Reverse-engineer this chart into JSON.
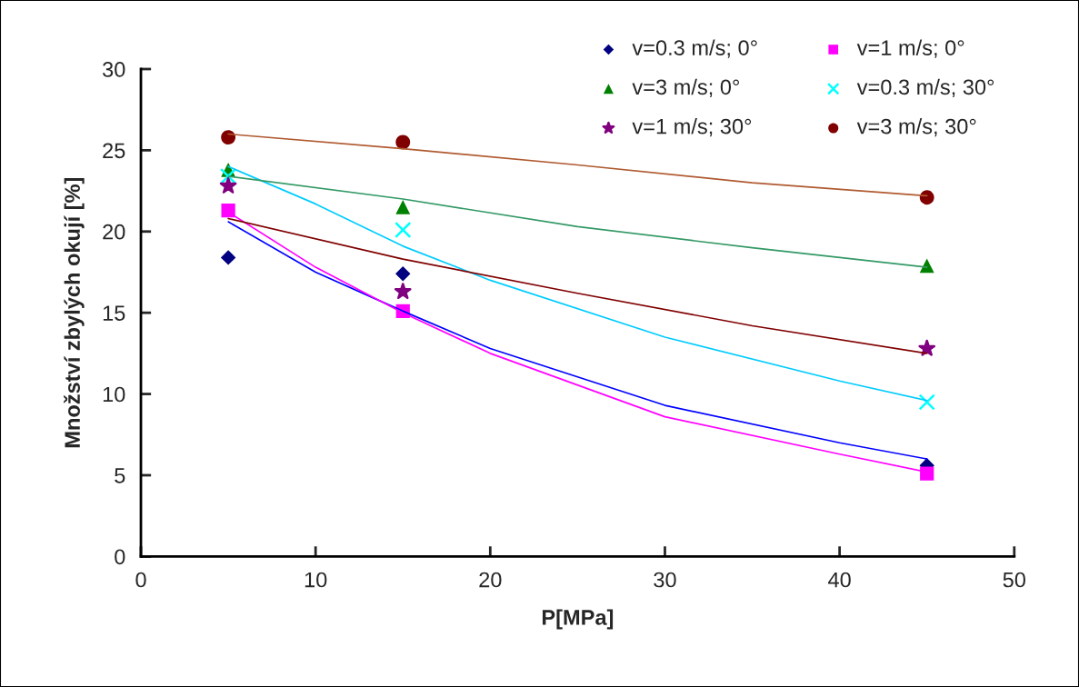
{
  "chart_data": {
    "type": "scatter",
    "xlabel": "P[MPa]",
    "ylabel": "Množství zbylých okují [%]",
    "x": [
      5,
      15,
      45
    ],
    "xlim": [
      0,
      50
    ],
    "xticks": [
      0,
      10,
      20,
      30,
      40,
      50
    ],
    "ylim": [
      0,
      30
    ],
    "yticks": [
      0,
      5,
      10,
      15,
      20,
      25,
      30
    ],
    "grid": false,
    "legend": "top right",
    "series": [
      {
        "name": "v=0.3 m/s; 0°",
        "color": "#000080",
        "marker": "diamond",
        "values": [
          18.4,
          17.4,
          5.6
        ]
      },
      {
        "name": "v=1 m/s; 0°",
        "color": "#ff00ff",
        "marker": "square",
        "values": [
          21.3,
          15.1,
          5.1
        ]
      },
      {
        "name": "v=3 m/s; 0°",
        "color": "#008000",
        "marker": "triangle",
        "values": [
          23.8,
          21.5,
          17.9
        ]
      },
      {
        "name": "v=0.3 m/s; 30°",
        "color": "#00ffff",
        "marker": "cross",
        "values": [
          23.4,
          20.1,
          9.5
        ]
      },
      {
        "name": "v=1 m/s; 30°",
        "color": "#800080",
        "marker": "star",
        "values": [
          22.8,
          16.3,
          12.8
        ]
      },
      {
        "name": "v=3 m/s; 30°",
        "color": "#800000",
        "marker": "circle",
        "values": [
          25.8,
          25.5,
          22.1
        ]
      },
      {
        "type": "line",
        "color": "#0000ff",
        "marker": "none",
        "x": [
          5,
          10,
          15,
          20,
          30,
          40,
          45
        ],
        "values": [
          20.6,
          17.5,
          15.1,
          12.8,
          9.3,
          7.0,
          6.0
        ]
      },
      {
        "type": "line",
        "color": "#ff00ff",
        "marker": "none",
        "x": [
          5,
          10,
          15,
          20,
          30,
          40,
          45
        ],
        "values": [
          21.2,
          17.8,
          15.0,
          12.5,
          8.6,
          6.3,
          5.2
        ]
      },
      {
        "type": "line",
        "color": "#00ccff",
        "marker": "none",
        "x": [
          5,
          10,
          15,
          20,
          30,
          40,
          45
        ],
        "values": [
          24.0,
          21.7,
          19.1,
          17.0,
          13.5,
          10.8,
          9.6
        ]
      },
      {
        "type": "line",
        "color": "#339966",
        "marker": "none",
        "x": [
          5,
          15,
          25,
          35,
          45
        ],
        "values": [
          23.4,
          22.0,
          20.3,
          19.0,
          17.8
        ]
      },
      {
        "type": "line",
        "color": "#800000",
        "marker": "none",
        "x": [
          5,
          15,
          25,
          35,
          45
        ],
        "values": [
          20.8,
          18.3,
          16.2,
          14.2,
          12.5
        ]
      },
      {
        "type": "line",
        "color": "#b05a30",
        "marker": "none",
        "x": [
          5,
          15,
          25,
          35,
          45
        ],
        "values": [
          26.0,
          25.1,
          24.1,
          23.0,
          22.2
        ]
      }
    ]
  }
}
